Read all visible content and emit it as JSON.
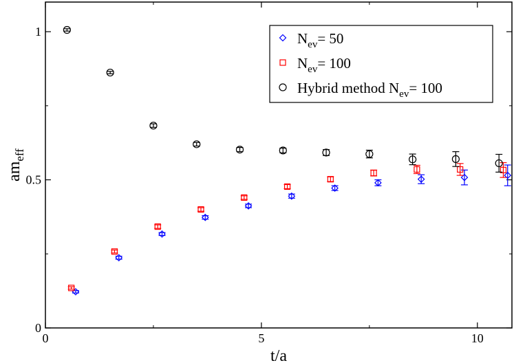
{
  "chart_data": {
    "type": "scatter",
    "title": "",
    "xlabel": "t/a",
    "ylabel_main": "am",
    "ylabel_sub": "eff",
    "xlim": [
      0,
      10.8
    ],
    "ylim": [
      0,
      1.1
    ],
    "xticks": [
      0,
      5,
      10
    ],
    "yticks": [
      0,
      0.5,
      1
    ],
    "xtick_labels": [
      "0",
      "5",
      "10"
    ],
    "ytick_labels": [
      "0",
      "0.5",
      "1"
    ],
    "legend_position": "top-right",
    "series": [
      {
        "name_prefix": "N",
        "name_sub": "ev",
        "name_suffix": "= 50",
        "marker": "diamond",
        "color": "#0000ff",
        "x": [
          0.7,
          1.7,
          2.7,
          3.7,
          4.7,
          5.7,
          6.7,
          7.7,
          8.7,
          9.7,
          10.7
        ],
        "y": [
          0.122,
          0.237,
          0.317,
          0.373,
          0.412,
          0.445,
          0.472,
          0.49,
          0.502,
          0.508,
          0.515
        ],
        "err": [
          0.004,
          0.005,
          0.005,
          0.006,
          0.006,
          0.007,
          0.008,
          0.01,
          0.015,
          0.025,
          0.035
        ]
      },
      {
        "name_prefix": "N",
        "name_sub": "ev",
        "name_suffix": "= 100",
        "marker": "square",
        "color": "#ff0000",
        "x": [
          0.6,
          1.6,
          2.6,
          3.6,
          4.6,
          5.6,
          6.6,
          7.6,
          8.6,
          9.6,
          10.6
        ],
        "y": [
          0.135,
          0.258,
          0.342,
          0.4,
          0.44,
          0.477,
          0.502,
          0.523,
          0.535,
          0.535,
          0.533
        ],
        "err": [
          0.004,
          0.005,
          0.006,
          0.006,
          0.006,
          0.007,
          0.008,
          0.01,
          0.014,
          0.02,
          0.025
        ]
      },
      {
        "name_prefix": "Hybrid method N",
        "name_sub": "ev",
        "name_suffix": "= 100",
        "marker": "circle",
        "color": "#000000",
        "x": [
          0.5,
          1.5,
          2.5,
          3.5,
          4.5,
          5.5,
          6.5,
          7.5,
          8.5,
          9.5,
          10.5
        ],
        "y": [
          1.006,
          0.862,
          0.683,
          0.62,
          0.602,
          0.599,
          0.592,
          0.587,
          0.569,
          0.57,
          0.556
        ],
        "err": [
          0.004,
          0.004,
          0.006,
          0.006,
          0.007,
          0.008,
          0.01,
          0.013,
          0.018,
          0.025,
          0.03
        ]
      }
    ]
  }
}
